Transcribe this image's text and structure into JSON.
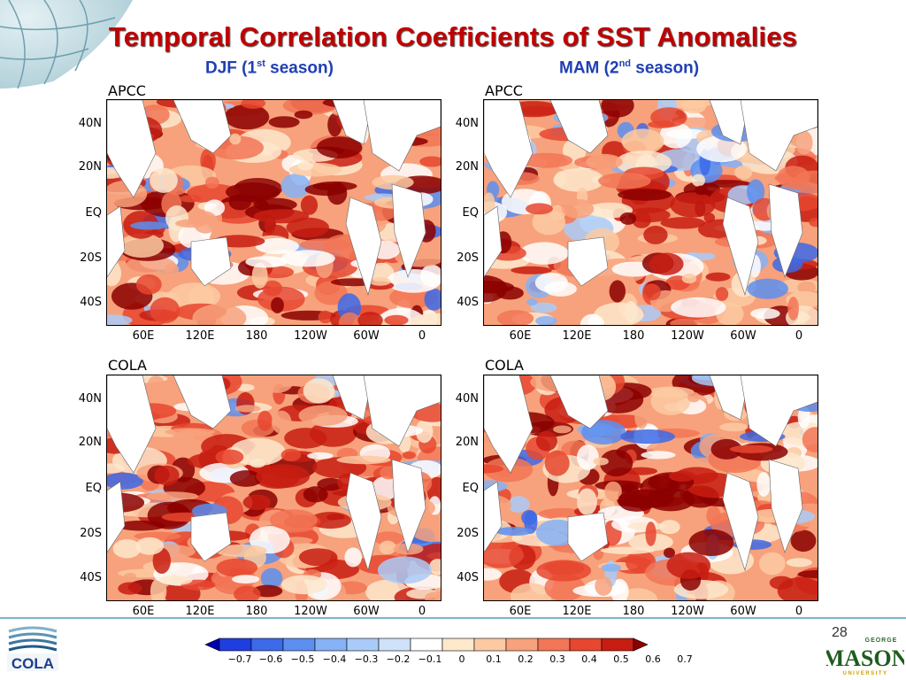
{
  "title": "Temporal Correlation Coefficients of SST Anomalies",
  "seasons": [
    {
      "prefix": "DJF (1",
      "sup": "st",
      "suffix": " season)"
    },
    {
      "prefix": "MAM (2",
      "sup": "nd",
      "suffix": " season)"
    }
  ],
  "panels": [
    {
      "label": "APCC"
    },
    {
      "label": "APCC"
    },
    {
      "label": "COLA"
    },
    {
      "label": "COLA"
    }
  ],
  "y_ticks": [
    "40N",
    "20N",
    "EQ",
    "20S",
    "40S"
  ],
  "x_ticks": [
    "60E",
    "120E",
    "180",
    "120W",
    "60W",
    "0"
  ],
  "colorbar": {
    "labels": [
      "−0.7",
      "−0.6",
      "−0.5",
      "−0.4",
      "−0.3",
      "−0.2",
      "−0.1",
      "0",
      "0.1",
      "0.2",
      "0.3",
      "0.4",
      "0.5",
      "0.6",
      "0.7"
    ],
    "colors": [
      "#0000b0",
      "#1f3ee0",
      "#3c6ae8",
      "#5c8ff0",
      "#86b2f5",
      "#aacbf8",
      "#cfe2fa",
      "#ffffff",
      "#fde8cc",
      "#fbcaa2",
      "#f7a27c",
      "#f27656",
      "#e6472f",
      "#c81d12",
      "#8b0000"
    ]
  },
  "page_number": "28",
  "logos": {
    "left": "COLA",
    "right_top": "GEORGE",
    "right_main": "MASON",
    "right_bottom": "UNIVERSITY"
  }
}
